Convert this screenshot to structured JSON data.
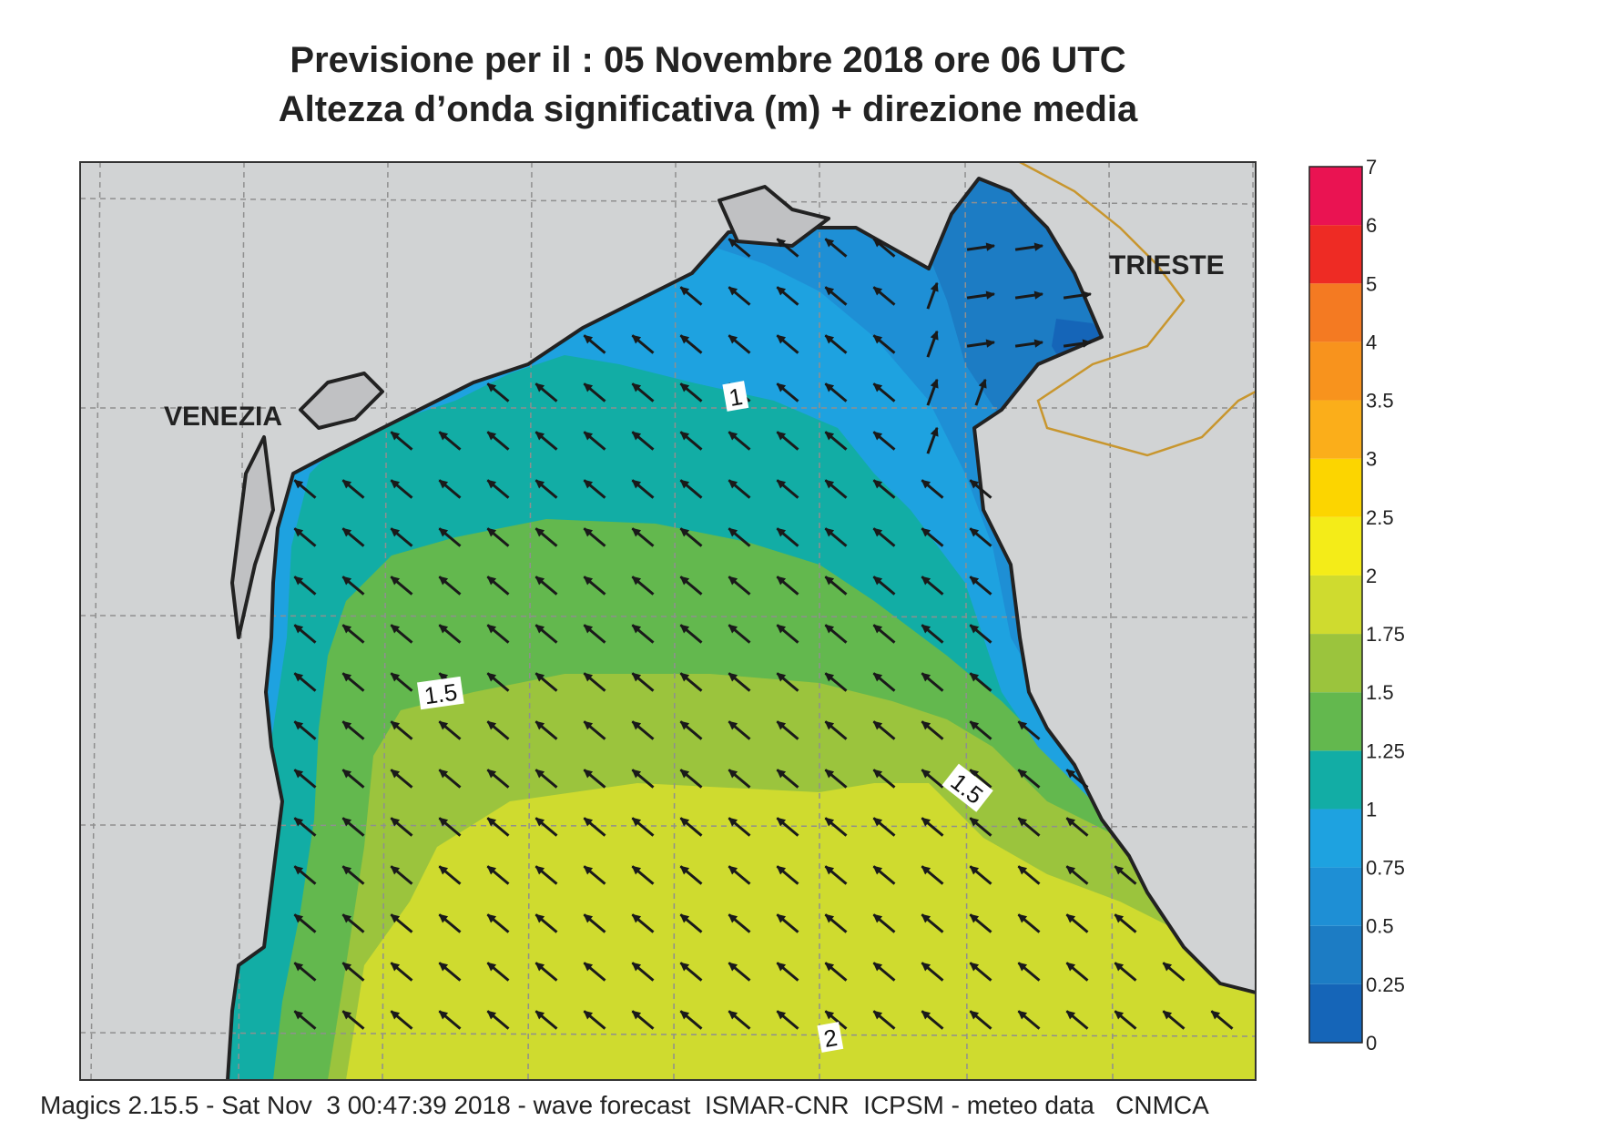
{
  "header": {
    "line1": "Previsione per il  :  05 Novembre  2018   ore 06 UTC",
    "line2": "Altezza d’onda significativa (m) + direzione media"
  },
  "map": {
    "cities": [
      {
        "name": "VENEZIA"
      },
      {
        "name": "TRIESTE"
      }
    ],
    "contour_labels": [
      "1",
      "1.5",
      "1.5",
      "2"
    ],
    "land_color": "#d1d3d4",
    "coast_color": "#222222",
    "border_color": "#c8962e"
  },
  "legend": {
    "levels": [
      "0",
      "0.25",
      "0.5",
      "0.75",
      "1",
      "1.25",
      "1.5",
      "1.75",
      "2",
      "2.5",
      "3",
      "3.5",
      "4",
      "5",
      "6",
      "7"
    ],
    "colors": [
      "#1565b8",
      "#1c7cc4",
      "#1e8fd5",
      "#1ea2e0",
      "#12ada5",
      "#63b84e",
      "#9bc43d",
      "#cfdb2f",
      "#f4ec18",
      "#fcd500",
      "#fbae1a",
      "#f8931d",
      "#f47a22",
      "#ee2b24",
      "#ea1352"
    ]
  },
  "footer": {
    "text": "Magics 2.15.5 - Sat Nov  3 00:47:39 2018 - wave forecast  ISMAR-CNR  ICPSM - meteo data   CNMCA"
  }
}
